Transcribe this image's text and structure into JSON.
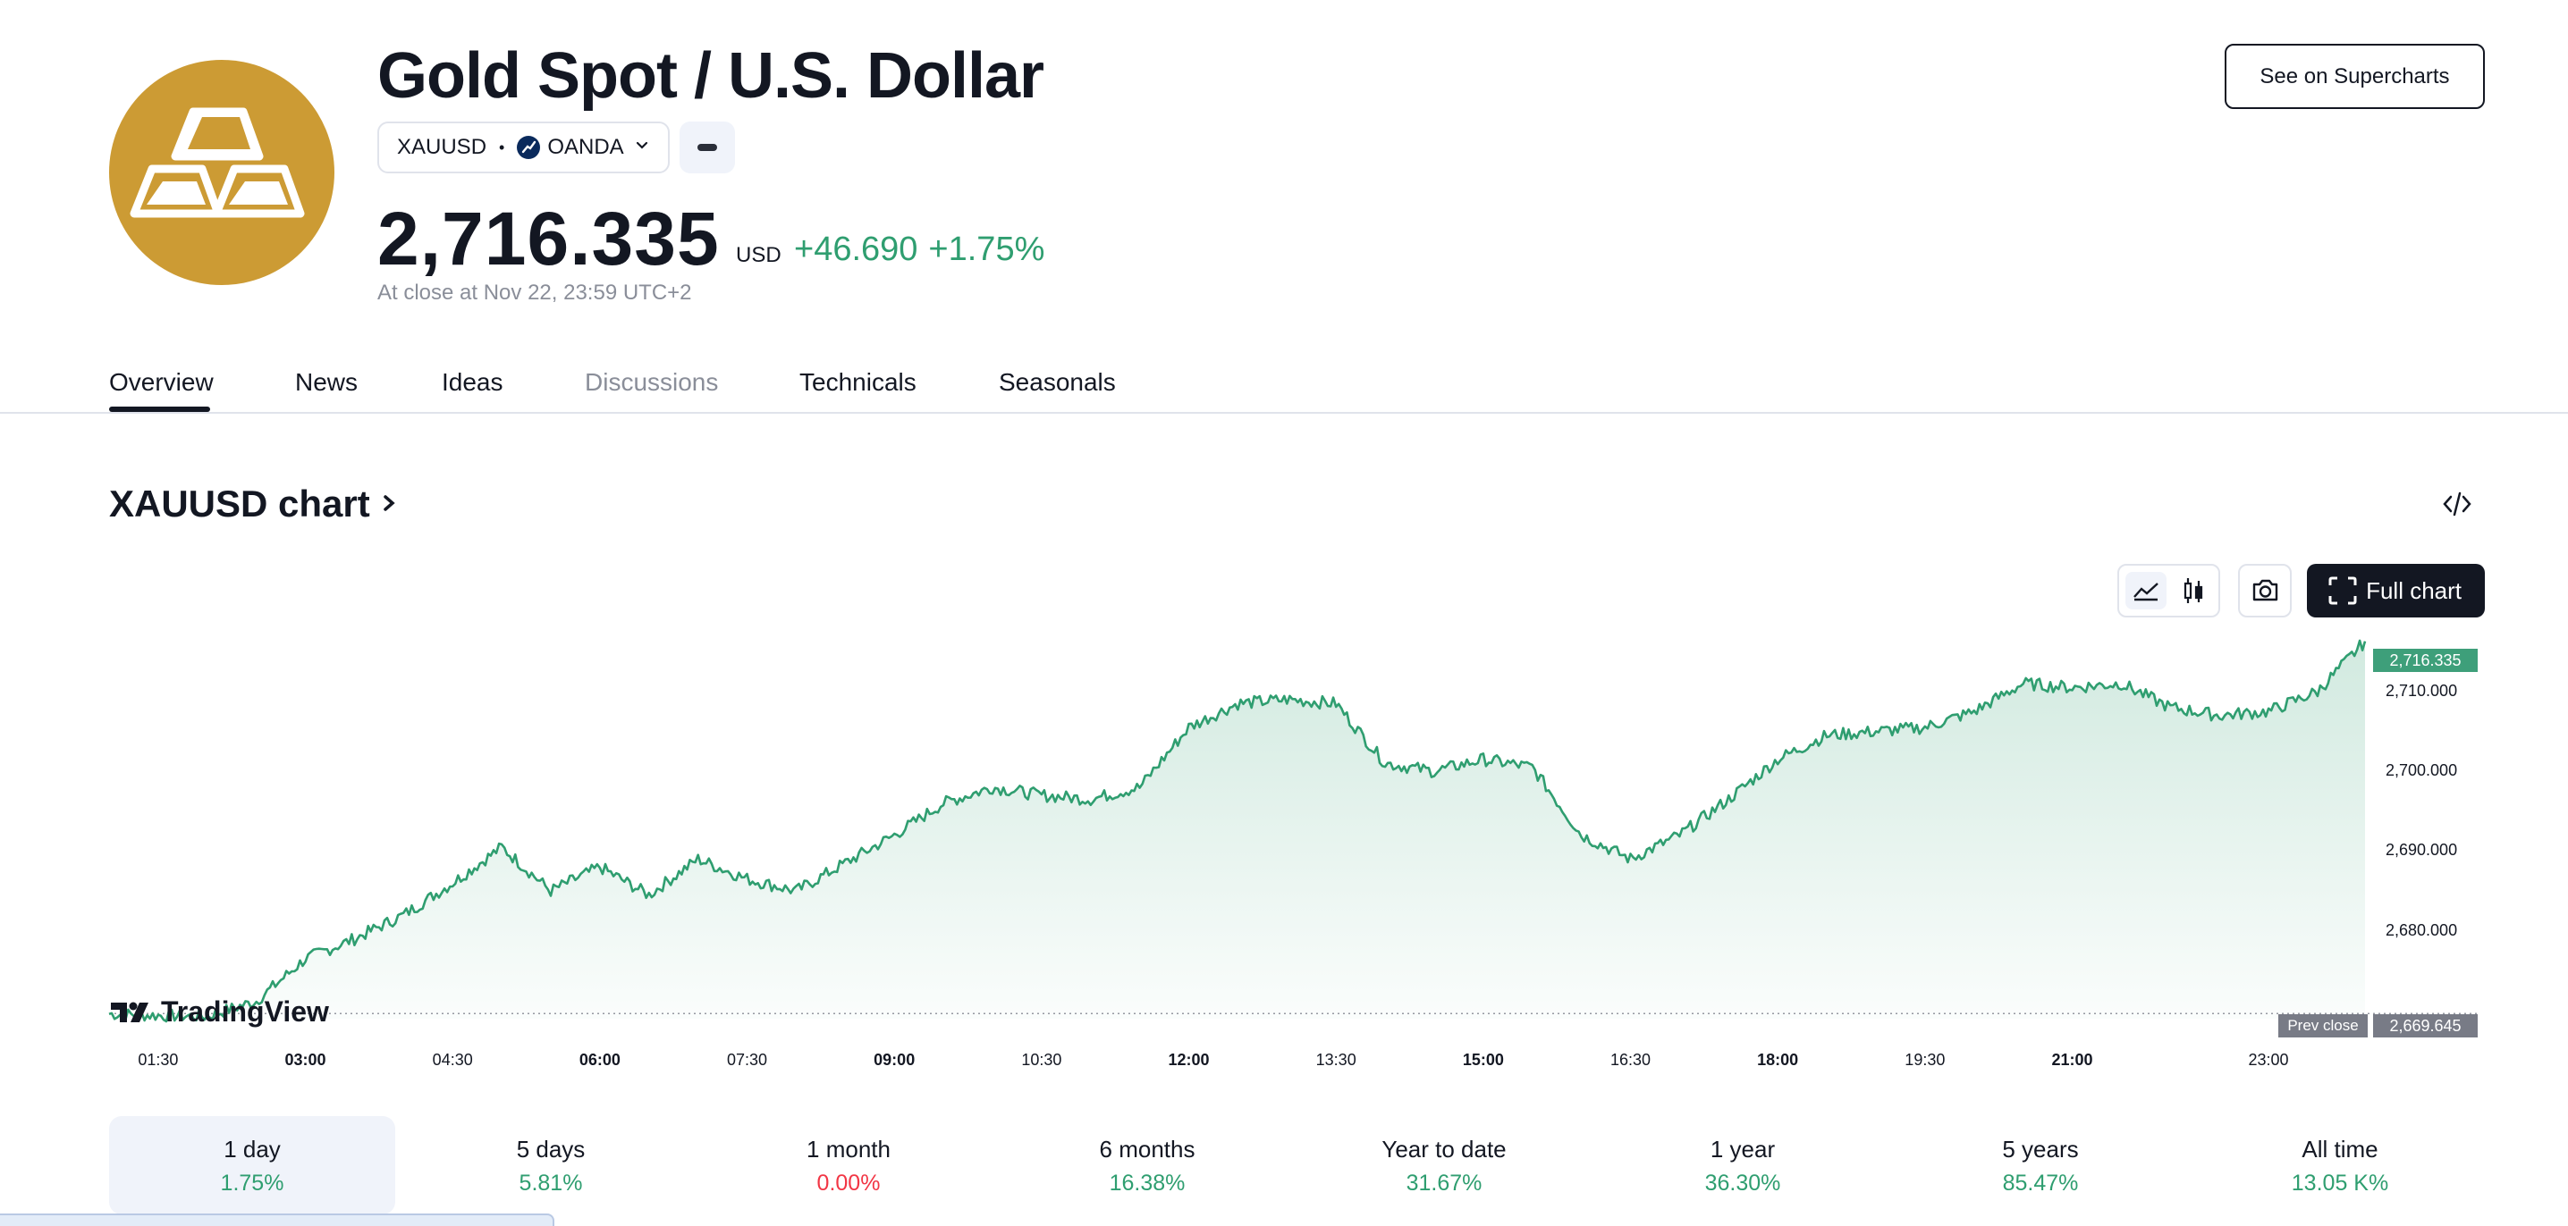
{
  "header": {
    "title": "Gold Spot / U.S. Dollar",
    "symbol": "XAUUSD",
    "exchange": "OANDA",
    "price": "2,716.335",
    "currency": "USD",
    "change_abs": "+46.690",
    "change_pct": "+1.75%",
    "close_time": "At close at Nov 22, 23:59 UTC+2",
    "supercharts_label": "See on Supercharts",
    "logo_icon": "gold-bars-icon",
    "logo_color": "#cc9b34",
    "positive_color": "#2f9e70",
    "negative_color": "#f23645"
  },
  "tabs": [
    {
      "label": "Overview",
      "active": true
    },
    {
      "label": "News"
    },
    {
      "label": "Ideas"
    },
    {
      "label": "Discussions",
      "muted": true
    },
    {
      "label": "Technicals"
    },
    {
      "label": "Seasonals"
    }
  ],
  "chart_section": {
    "title": "XAUUSD chart",
    "full_chart_label": "Full chart",
    "watermark": "TradingView"
  },
  "chart_data": {
    "type": "area",
    "title": "",
    "xlabel": "",
    "ylabel": "",
    "x_ticks": [
      "01:30",
      "03:00",
      "04:30",
      "06:00",
      "07:30",
      "09:00",
      "10:30",
      "12:00",
      "13:30",
      "15:00",
      "16:30",
      "18:00",
      "19:30",
      "21:00",
      "23:00"
    ],
    "y_ticks": [
      "2,680.000",
      "2,690.000",
      "2,700.000",
      "2,710.000"
    ],
    "ylim": [
      2669,
      2717
    ],
    "last_value": "2,716.335",
    "prev_close_label": "Prev close",
    "prev_close": "2,669.645",
    "grid": false,
    "series": [
      {
        "x": [
          "01:00",
          "01:30",
          "02:00",
          "02:30",
          "03:00",
          "03:30",
          "04:00",
          "04:30",
          "05:00",
          "05:30",
          "06:00",
          "06:30",
          "07:00",
          "07:30",
          "08:00",
          "08:30",
          "09:00",
          "09:30",
          "10:00",
          "10:30",
          "11:00",
          "11:30",
          "12:00",
          "12:30",
          "13:00",
          "13:30",
          "14:00",
          "14:30",
          "15:00",
          "15:30",
          "16:00",
          "16:30",
          "17:00",
          "17:30",
          "18:00",
          "18:30",
          "19:00",
          "19:30",
          "20:00",
          "20:30",
          "21:00",
          "21:30",
          "22:00",
          "22:30",
          "23:00",
          "23:30",
          "23:59"
        ],
        "values": [
          2669.6,
          2669.4,
          2669.3,
          2671.2,
          2676.5,
          2679.0,
          2682.0,
          2686.0,
          2690.5,
          2685.0,
          2688.0,
          2684.5,
          2689.0,
          2686.5,
          2685.0,
          2688.5,
          2692.0,
          2696.0,
          2698.0,
          2697.0,
          2696.5,
          2698.0,
          2705.5,
          2708.5,
          2709.0,
          2708.5,
          2701.0,
          2700.0,
          2701.5,
          2700.5,
          2692.0,
          2689.0,
          2692.0,
          2696.5,
          2701.5,
          2704.5,
          2705.0,
          2705.5,
          2707.5,
          2711.0,
          2710.5,
          2711.0,
          2708.0,
          2707.0,
          2707.5,
          2710.0,
          2716.3
        ]
      }
    ],
    "line_color": "#2f9e70"
  },
  "periods": [
    {
      "label": "1 day",
      "value": "1.75%",
      "sign": "pos",
      "active": true
    },
    {
      "label": "5 days",
      "value": "5.81%",
      "sign": "pos"
    },
    {
      "label": "1 month",
      "value": "0.00%",
      "sign": "neg"
    },
    {
      "label": "6 months",
      "value": "16.38%",
      "sign": "pos"
    },
    {
      "label": "Year to date",
      "value": "31.67%",
      "sign": "pos"
    },
    {
      "label": "1 year",
      "value": "36.30%",
      "sign": "pos"
    },
    {
      "label": "5 years",
      "value": "85.47%",
      "sign": "pos"
    },
    {
      "label": "All time",
      "value": "13.05 K%",
      "sign": "pos"
    }
  ]
}
